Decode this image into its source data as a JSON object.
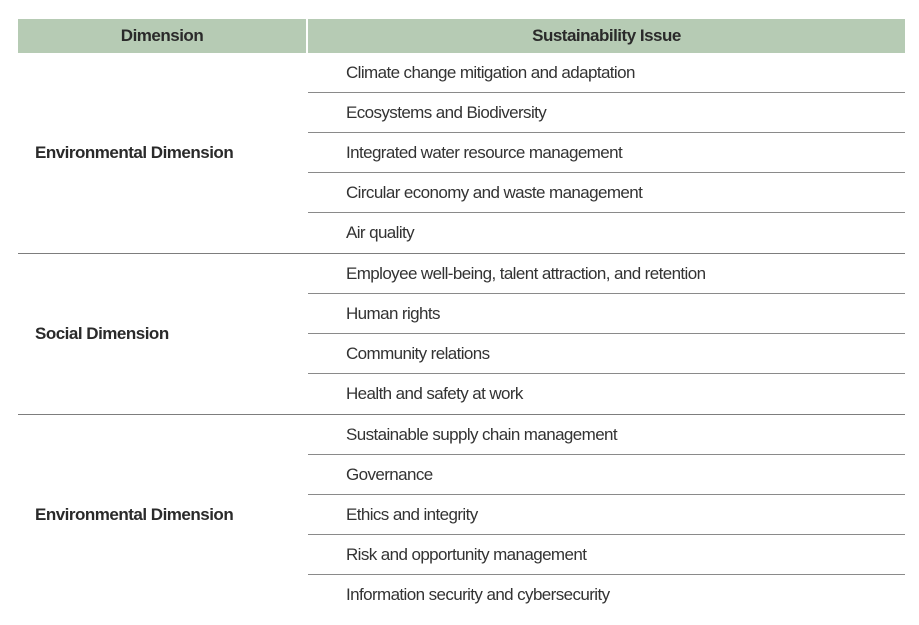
{
  "table": {
    "headers": {
      "dimension": "Dimension",
      "issue": "Sustainability Issue"
    },
    "groups": [
      {
        "dimension": "Environmental Dimension",
        "issues": [
          "Climate change mitigation and adaptation",
          "Ecosystems and Biodiversity",
          "Integrated water resource management",
          "Circular economy and waste management",
          "Air quality"
        ]
      },
      {
        "dimension": "Social Dimension",
        "issues": [
          "Employee well-being, talent attraction, and retention",
          "Human rights",
          "Community relations",
          "Health and safety at work"
        ]
      },
      {
        "dimension": "Environmental Dimension",
        "issues": [
          "Sustainable supply chain management",
          "Governance",
          "Ethics and integrity",
          "Risk and opportunity management",
          "Information security and cybersecurity"
        ]
      }
    ]
  },
  "colors": {
    "header_bg": "#b6cbb4",
    "text": "#2b2b2b",
    "rule": "#8a8a8a"
  }
}
